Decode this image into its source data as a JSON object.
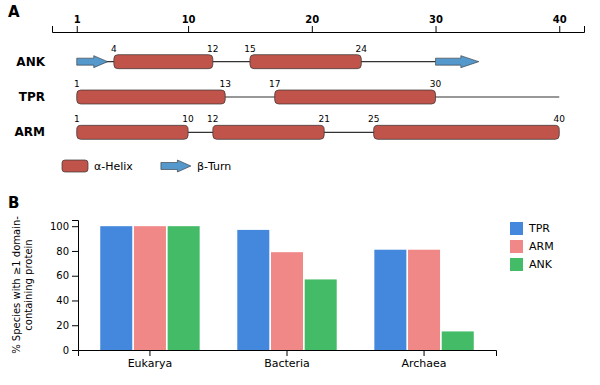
{
  "chart_data": [
    {
      "type": "range",
      "title": "A",
      "categories": [
        "ANK",
        "TPR",
        "ARM"
      ],
      "series": [
        {
          "name": "α-Helix",
          "color": "#C0544A",
          "marker": "box",
          "data_labels": true,
          "values": [
            [
              [
                4,
                12
              ],
              [
                15,
                24
              ]
            ],
            [
              [
                1,
                13
              ],
              [
                17,
                30
              ]
            ],
            [
              [
                1,
                10
              ],
              [
                12,
                21
              ],
              [
                25,
                40
              ]
            ]
          ]
        },
        {
          "name": "β-Turn",
          "color": "#5599CC",
          "marker": "arrow",
          "values": [
            [
              [
                1,
                3.5
              ],
              [
                30,
                33.5
              ]
            ],
            [],
            []
          ]
        }
      ],
      "backbone": [
        [
          3.2,
          30
        ],
        [
          1,
          40
        ],
        [
          1,
          40
        ]
      ],
      "xlim": [
        -1,
        42
      ],
      "xticks": [
        1,
        10,
        20,
        30,
        40
      ]
    },
    {
      "type": "bar",
      "title": "B",
      "categories": [
        "Eukarya",
        "Bacteria",
        "Archaea"
      ],
      "series": [
        {
          "name": "TPR",
          "color": "#4488DD",
          "values": [
            100,
            97,
            81
          ]
        },
        {
          "name": "ARM",
          "color": "#F08888",
          "values": [
            100,
            79,
            81
          ]
        },
        {
          "name": "ANK",
          "color": "#44BB66",
          "values": [
            100,
            57,
            15
          ]
        }
      ],
      "ylabel": "% Species with ≥1 domain-\ncontaining protein",
      "ylim": [
        0,
        105
      ],
      "yticks": [
        0,
        20,
        40,
        60,
        80,
        100
      ],
      "grid": false,
      "legend": "upper right"
    }
  ]
}
